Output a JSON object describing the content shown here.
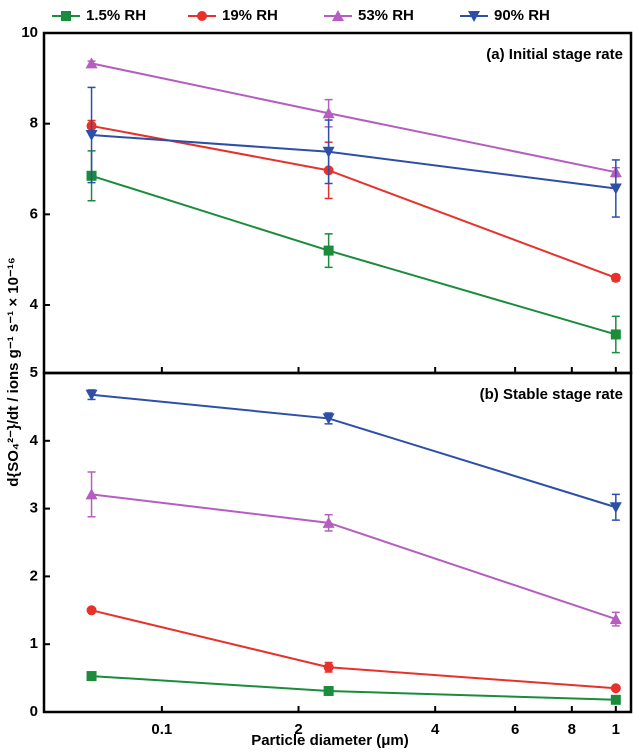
{
  "chart_data": [
    {
      "type": "line",
      "title": "(a) Initial stage rate",
      "ylabel": "d{SO₄²⁻}/dt / ions g⁻¹ s⁻¹ × 10⁻¹⁶",
      "x": [
        0.07,
        0.233,
        1.0
      ],
      "ylim": [
        2.5,
        10
      ],
      "yticks": [
        4,
        6,
        8,
        10
      ],
      "series": [
        {
          "name": "1.5% RH",
          "color": "#1a8c3c",
          "marker": "square",
          "values": [
            6.85,
            5.2,
            3.35
          ],
          "errors": [
            0.55,
            0.37,
            0.4
          ]
        },
        {
          "name": "19% RH",
          "color": "#e8312a",
          "marker": "circle",
          "values": [
            7.95,
            6.97,
            4.6
          ],
          "errors": [
            0.12,
            0.62,
            0.07
          ]
        },
        {
          "name": "53% RH",
          "color": "#b45fc0",
          "marker": "triangle-up",
          "values": [
            9.33,
            8.23,
            6.93
          ],
          "errors": [
            0.05,
            0.3,
            0.1
          ]
        },
        {
          "name": "90% RH",
          "color": "#2e4fa8",
          "marker": "triangle-down",
          "values": [
            7.75,
            7.38,
            6.57
          ],
          "errors": [
            1.05,
            0.7,
            0.63
          ]
        }
      ]
    },
    {
      "type": "line",
      "title": "(b) Stable stage rate",
      "xlabel": "Particle diameter (μm)",
      "x": [
        0.07,
        0.233,
        1.0
      ],
      "xscale": "log",
      "xlim": [
        0.055,
        1.08
      ],
      "xticks": [
        {
          "value": 0.1,
          "label": "0.1"
        },
        {
          "value": 0.2,
          "label": "2"
        },
        {
          "value": 0.4,
          "label": "4"
        },
        {
          "value": 0.6,
          "label": "6"
        },
        {
          "value": 0.8,
          "label": "8"
        },
        1
      ],
      "ylim": [
        0,
        5
      ],
      "yticks": [
        0,
        1,
        2,
        3,
        4,
        5
      ],
      "series": [
        {
          "color": "#1a8c3c",
          "marker": "square",
          "values": [
            0.53,
            0.31,
            0.18
          ],
          "errors": [
            0.02,
            0.03,
            0.03
          ]
        },
        {
          "color": "#e8312a",
          "marker": "circle",
          "values": [
            1.5,
            0.66,
            0.35
          ],
          "errors": [
            0.02,
            0.07,
            0.03
          ]
        },
        {
          "color": "#b45fc0",
          "marker": "triangle-up",
          "values": [
            3.21,
            2.79,
            1.37
          ],
          "errors": [
            0.33,
            0.12,
            0.1
          ]
        },
        {
          "color": "#2e4fa8",
          "marker": "triangle-down",
          "values": [
            4.68,
            4.33,
            3.02
          ],
          "errors": [
            0.07,
            0.08,
            0.19
          ]
        }
      ]
    }
  ]
}
